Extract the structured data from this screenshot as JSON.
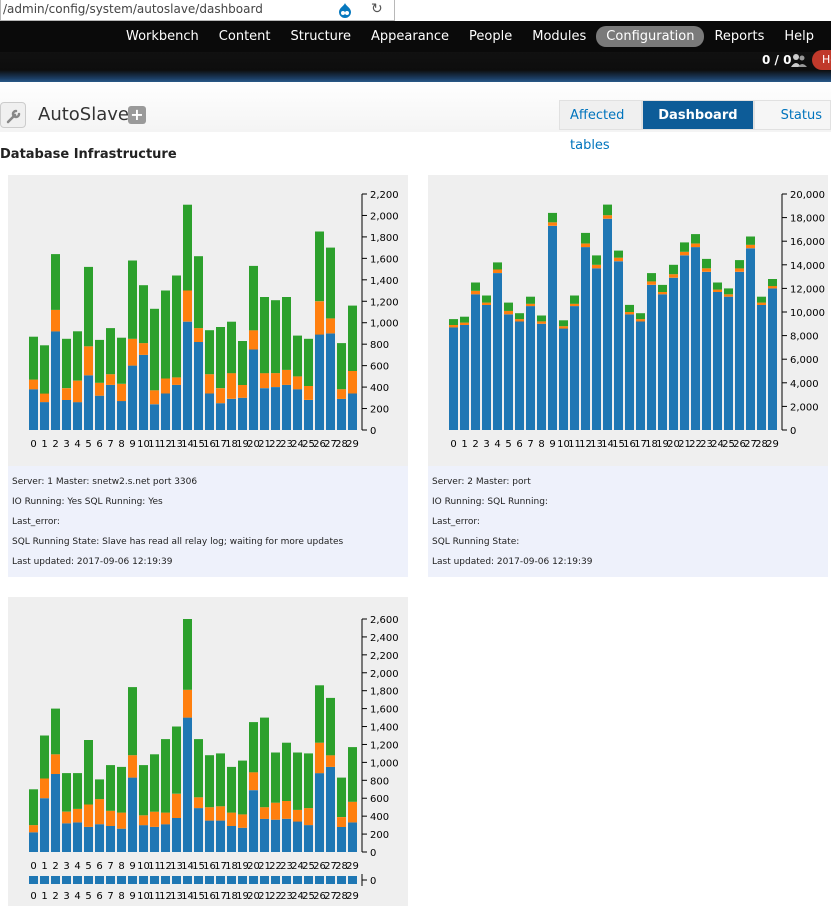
{
  "browser": {
    "url": "/admin/config/system/autoslave/dashboard",
    "drupal_icon": "drupal-icon",
    "reload_icon": "reload-icon"
  },
  "toolbar": {
    "items": [
      {
        "label": "Workbench"
      },
      {
        "label": "Content"
      },
      {
        "label": "Structure"
      },
      {
        "label": "Appearance"
      },
      {
        "label": "People"
      },
      {
        "label": "Modules"
      },
      {
        "label": "Configuration"
      },
      {
        "label": "Reports"
      },
      {
        "label": "Help"
      }
    ],
    "active": "Configuration",
    "user_count": "0 / 0",
    "hello": "He"
  },
  "page": {
    "title": "AutoSlave",
    "add_label": "+",
    "tabs": {
      "affected": "Affected tables",
      "dashboard": "Dashboard",
      "status": "Status"
    },
    "section_title": "Database Infrastructure"
  },
  "colors": {
    "blue": "#1f77b4",
    "orange": "#ff7f0e",
    "green": "#2ca02c",
    "active_tab": "#0d5c98"
  },
  "servers": [
    {
      "line1": "Server: 1 Master: snetw2.s.net port 3306",
      "line2": "IO Running: Yes SQL Running: Yes",
      "line3": "Last_error:",
      "line4": "SQL Running State: Slave has read all relay log; waiting for more updates",
      "line5": "Last updated: 2017-09-06 12:19:39"
    },
    {
      "line1": "Server: 2 Master: port",
      "line2": "IO Running: SQL Running:",
      "line3": "Last_error:",
      "line4": "SQL Running State:",
      "line5": "Last updated: 2017-09-06 12:19:39"
    }
  ],
  "chart_data": [
    {
      "type": "bar",
      "stacked": true,
      "categories": [
        "0",
        "1",
        "2",
        "3",
        "4",
        "5",
        "6",
        "7",
        "8",
        "9",
        "10",
        "11",
        "12",
        "13",
        "14",
        "15",
        "16",
        "17",
        "18",
        "19",
        "20",
        "21",
        "22",
        "23",
        "24",
        "25",
        "26",
        "27",
        "28",
        "29"
      ],
      "ylim": [
        0,
        2200
      ],
      "yticks": [
        0,
        200,
        400,
        600,
        800,
        1000,
        1200,
        1400,
        1600,
        1800,
        2000,
        2200
      ],
      "ytick_labels": [
        "0",
        "200",
        "400",
        "600",
        "800",
        "1,000",
        "1,200",
        "1,400",
        "1,600",
        "1,800",
        "2,000",
        "2,200"
      ],
      "series": [
        {
          "name": "blue",
          "values": [
            380,
            260,
            920,
            280,
            260,
            510,
            320,
            420,
            270,
            600,
            700,
            240,
            340,
            420,
            1010,
            820,
            340,
            250,
            290,
            300,
            750,
            390,
            400,
            420,
            380,
            280,
            890,
            900,
            290,
            340
          ]
        },
        {
          "name": "orange",
          "values": [
            90,
            80,
            200,
            110,
            200,
            270,
            120,
            100,
            160,
            250,
            110,
            130,
            140,
            70,
            290,
            130,
            180,
            140,
            240,
            120,
            180,
            140,
            130,
            140,
            120,
            130,
            310,
            140,
            90,
            210
          ]
        },
        {
          "name": "green",
          "values": [
            400,
            450,
            520,
            460,
            460,
            740,
            400,
            430,
            430,
            730,
            540,
            760,
            820,
            950,
            800,
            670,
            410,
            570,
            480,
            410,
            600,
            710,
            680,
            680,
            380,
            440,
            650,
            660,
            430,
            610
          ]
        }
      ]
    },
    {
      "type": "bar",
      "stacked": true,
      "categories": [
        "0",
        "1",
        "2",
        "3",
        "4",
        "5",
        "6",
        "7",
        "8",
        "9",
        "10",
        "11",
        "12",
        "13",
        "14",
        "15",
        "16",
        "17",
        "18",
        "19",
        "20",
        "21",
        "22",
        "23",
        "24",
        "25",
        "26",
        "27",
        "28",
        "29"
      ],
      "ylim": [
        0,
        20000
      ],
      "yticks": [
        0,
        2000,
        4000,
        6000,
        8000,
        10000,
        12000,
        14000,
        16000,
        18000,
        20000
      ],
      "ytick_labels": [
        "0",
        "2,000",
        "4,000",
        "6,000",
        "8,000",
        "10,000",
        "12,000",
        "14,000",
        "16,000",
        "18,000",
        "20,000"
      ],
      "series": [
        {
          "name": "blue",
          "values": [
            8700,
            8900,
            11500,
            10600,
            13300,
            9800,
            9200,
            10500,
            9000,
            17300,
            8600,
            10500,
            15500,
            13700,
            17900,
            14300,
            9800,
            9200,
            12300,
            11500,
            12900,
            14800,
            15500,
            13400,
            11700,
            11300,
            13400,
            15400,
            10600,
            12000
          ]
        },
        {
          "name": "orange",
          "values": [
            200,
            200,
            300,
            200,
            300,
            300,
            200,
            200,
            200,
            300,
            200,
            200,
            300,
            300,
            300,
            300,
            200,
            200,
            300,
            200,
            300,
            300,
            300,
            300,
            200,
            200,
            300,
            300,
            200,
            200
          ]
        },
        {
          "name": "green",
          "values": [
            500,
            500,
            700,
            600,
            600,
            700,
            500,
            600,
            500,
            800,
            500,
            700,
            900,
            800,
            900,
            600,
            600,
            500,
            700,
            600,
            800,
            800,
            800,
            800,
            600,
            500,
            700,
            700,
            500,
            600
          ]
        }
      ]
    },
    {
      "type": "bar",
      "stacked": true,
      "categories": [
        "0",
        "1",
        "2",
        "3",
        "4",
        "5",
        "6",
        "7",
        "8",
        "9",
        "10",
        "11",
        "12",
        "13",
        "14",
        "15",
        "16",
        "17",
        "18",
        "19",
        "20",
        "21",
        "22",
        "23",
        "24",
        "25",
        "26",
        "27",
        "28",
        "29"
      ],
      "ylim": [
        0,
        2600
      ],
      "yticks": [
        0,
        200,
        400,
        600,
        800,
        1000,
        1200,
        1400,
        1600,
        1800,
        2000,
        2200,
        2400,
        2600
      ],
      "ytick_labels": [
        "0",
        "200",
        "400",
        "600",
        "800",
        "1,000",
        "1,200",
        "1,400",
        "1,600",
        "1,800",
        "2,000",
        "2,200",
        "2,400",
        "2,600"
      ],
      "series": [
        {
          "name": "blue",
          "values": [
            220,
            600,
            870,
            320,
            330,
            280,
            310,
            290,
            260,
            830,
            300,
            280,
            310,
            380,
            1500,
            490,
            350,
            350,
            290,
            270,
            690,
            370,
            360,
            370,
            340,
            300,
            880,
            950,
            280,
            330
          ]
        },
        {
          "name": "orange",
          "values": [
            80,
            220,
            220,
            130,
            150,
            250,
            280,
            170,
            180,
            250,
            110,
            170,
            130,
            270,
            310,
            120,
            150,
            160,
            150,
            150,
            200,
            130,
            190,
            200,
            130,
            190,
            340,
            130,
            110,
            230
          ]
        },
        {
          "name": "green",
          "values": [
            400,
            480,
            510,
            430,
            400,
            720,
            220,
            510,
            510,
            760,
            560,
            640,
            820,
            750,
            790,
            650,
            580,
            590,
            510,
            600,
            560,
            1000,
            560,
            650,
            640,
            610,
            640,
            640,
            440,
            610
          ]
        }
      ]
    },
    {
      "type": "bar",
      "categories": [
        "0",
        "1",
        "2",
        "3",
        "4",
        "5",
        "6",
        "7",
        "8",
        "9",
        "10",
        "11",
        "12",
        "13",
        "14",
        "15",
        "16",
        "17",
        "18",
        "19",
        "20",
        "21",
        "22",
        "23",
        "24",
        "25",
        "26",
        "27",
        "28",
        "29"
      ],
      "yticks": [
        0
      ],
      "ytick_labels": [
        "0"
      ],
      "series": [
        {
          "name": "blue",
          "values": [
            0,
            0,
            0,
            0,
            0,
            0,
            0,
            0,
            0,
            0,
            0,
            0,
            0,
            0,
            0,
            0,
            0,
            0,
            0,
            0,
            0,
            0,
            0,
            0,
            0,
            0,
            0,
            0,
            0,
            0
          ]
        }
      ]
    }
  ]
}
